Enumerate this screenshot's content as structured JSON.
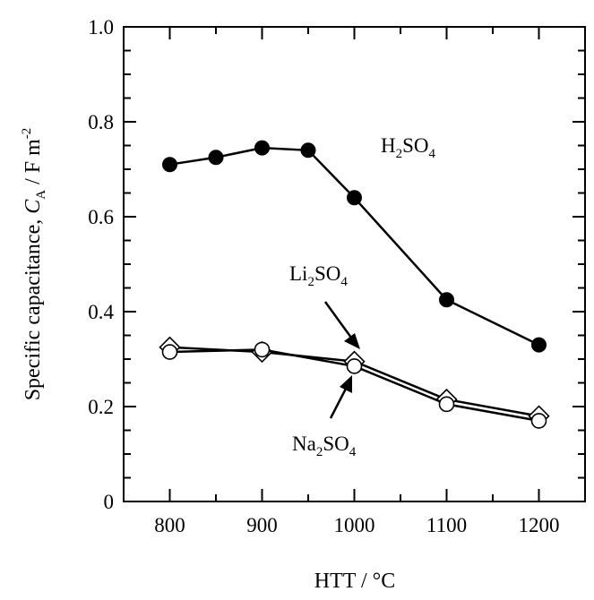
{
  "chart_data": {
    "type": "line",
    "xlabel": "HTT / °C",
    "ylabel": {
      "prefix": "Specific capacitance, ",
      "symbol": "C",
      "symbol_sub": "A",
      "unit": " / F m",
      "unit_sup": "-2"
    },
    "xlim": [
      750,
      1250
    ],
    "ylim": [
      0,
      1.0
    ],
    "x_ticks": [
      800,
      900,
      1000,
      1100,
      1200
    ],
    "x_tick_labels": [
      "800",
      "900",
      "1000",
      "1100",
      "1200"
    ],
    "y_ticks": [
      0,
      0.2,
      0.4,
      0.6,
      0.8,
      1.0
    ],
    "y_tick_labels": [
      "0",
      "0.2",
      "0.4",
      "0.6",
      "0.8",
      "1.0"
    ],
    "grid": false,
    "series": [
      {
        "name": "H2SO4",
        "label": {
          "a": "H",
          "b": "2",
          "c": "SO",
          "d": "4"
        },
        "marker": "filled-circle",
        "x": [
          800,
          850,
          900,
          950,
          1000,
          1100,
          1200
        ],
        "y": [
          0.71,
          0.725,
          0.745,
          0.74,
          0.64,
          0.425,
          0.33
        ]
      },
      {
        "name": "Li2SO4",
        "label": {
          "a": "Li",
          "b": "2",
          "c": "SO",
          "d": "4"
        },
        "marker": "open-diamond",
        "x": [
          800,
          900,
          1000,
          1100,
          1200
        ],
        "y": [
          0.325,
          0.315,
          0.295,
          0.215,
          0.18
        ]
      },
      {
        "name": "Na2SO4",
        "label": {
          "a": "Na",
          "b": "2",
          "c": "SO",
          "d": "4"
        },
        "marker": "open-circle",
        "x": [
          800,
          900,
          1000,
          1100,
          1200
        ],
        "y": [
          0.315,
          0.32,
          0.285,
          0.205,
          0.17
        ]
      }
    ]
  }
}
